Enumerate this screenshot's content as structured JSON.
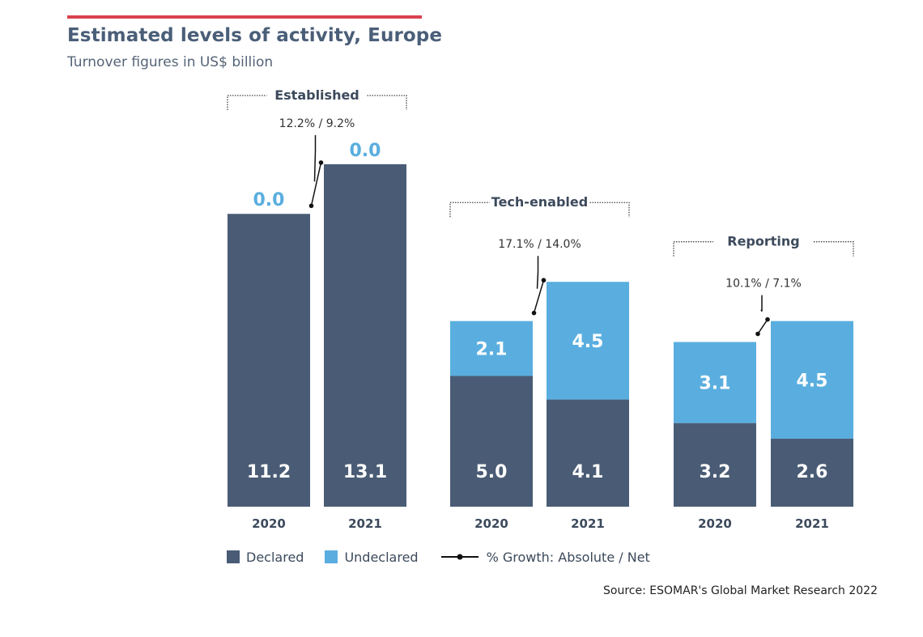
{
  "title": "Estimated levels of activity, Europe",
  "subtitle": "Turnover figures in US$ billion",
  "source": "Source: ESOMAR's Global Market Research 2022",
  "legend": {
    "declared": "Declared",
    "undeclared": "Undeclared",
    "growth": "% Growth: Absolute / Net"
  },
  "colors": {
    "declared": "#4a5c75",
    "undeclared": "#5aaedf",
    "accent": "#d9434f",
    "title": "#4a5e78"
  },
  "chart_data": {
    "type": "bar",
    "stacked": true,
    "title": "Estimated levels of activity, Europe",
    "ylabel": "Turnover figures in US$ billion",
    "groups": [
      {
        "name": "Established",
        "growth": "12.2% / 9.2%",
        "bars": [
          {
            "year": "2020",
            "declared": 11.2,
            "undeclared": 0.0,
            "declared_label": "11.2",
            "undeclared_label": "0.0"
          },
          {
            "year": "2021",
            "declared": 13.1,
            "undeclared": 0.0,
            "declared_label": "13.1",
            "undeclared_label": "0.0"
          }
        ]
      },
      {
        "name": "Tech-enabled",
        "growth": "17.1% / 14.0%",
        "bars": [
          {
            "year": "2020",
            "declared": 5.0,
            "undeclared": 2.1,
            "declared_label": "5.0",
            "undeclared_label": "2.1"
          },
          {
            "year": "2021",
            "declared": 4.1,
            "undeclared": 4.5,
            "declared_label": "4.1",
            "undeclared_label": "4.5"
          }
        ]
      },
      {
        "name": "Reporting",
        "growth": "10.1% / 7.1%",
        "bars": [
          {
            "year": "2020",
            "declared": 3.2,
            "undeclared": 3.1,
            "declared_label": "3.2",
            "undeclared_label": "3.1"
          },
          {
            "year": "2021",
            "declared": 2.6,
            "undeclared": 4.5,
            "declared_label": "2.6",
            "undeclared_label": "4.5"
          }
        ]
      }
    ],
    "series": [
      {
        "name": "Declared"
      },
      {
        "name": "Undeclared"
      }
    ]
  }
}
